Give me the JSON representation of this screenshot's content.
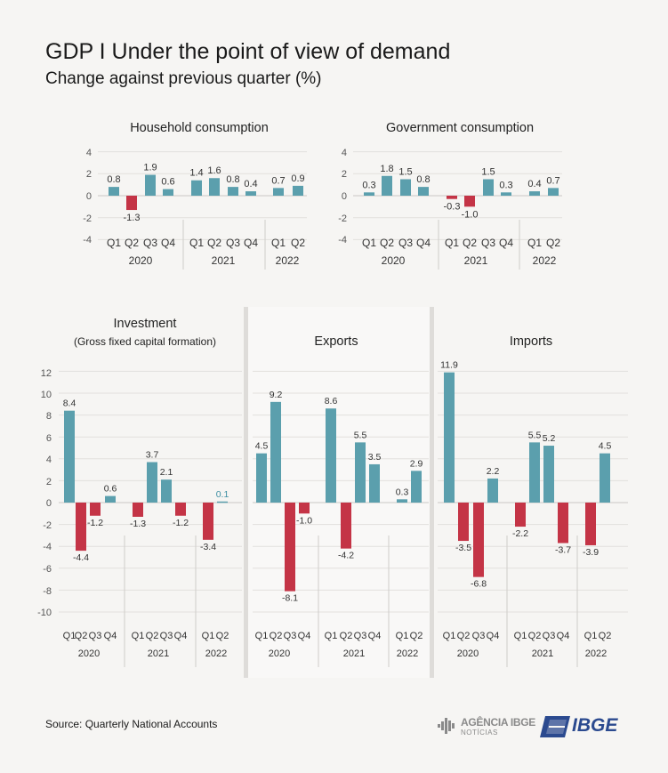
{
  "header": {
    "title": "GDP I Under the point of view of demand",
    "subtitle": "Change against previous quarter (%)"
  },
  "footer": {
    "source": "Source: Quarterly National Accounts",
    "logo_agencia_text": "AGÊNCIA IBGE",
    "logo_agencia_sub": "NOTÍCIAS",
    "logo_ibge_text": "IBGE"
  },
  "colors": {
    "positive": "#5b9fad",
    "negative": "#c43446",
    "highlight_label": "#3d8fa3"
  },
  "chart_data": [
    {
      "type": "bar",
      "title": "Household consumption",
      "subtitle": "",
      "categories": [
        "Q1",
        "Q2",
        "Q3",
        "Q4",
        "Q1",
        "Q2",
        "Q3",
        "Q4",
        "Q1",
        "Q2"
      ],
      "groups": [
        {
          "label": "2020",
          "count": 4
        },
        {
          "label": "2021",
          "count": 4
        },
        {
          "label": "2022",
          "count": 2
        }
      ],
      "values": [
        0.8,
        -1.3,
        1.9,
        0.6,
        1.4,
        1.6,
        0.8,
        0.4,
        0.7,
        0.9
      ],
      "value_labels": [
        "0.8",
        "-1.3",
        "1.9",
        "0.6",
        "1.4",
        "1.6",
        "0.8",
        "0.4",
        "0.7",
        "0.9"
      ],
      "yticks": [
        "4",
        "2",
        "0",
        "-2",
        "-4"
      ],
      "ylim": [
        -4,
        4
      ]
    },
    {
      "type": "bar",
      "title": "Government consumption",
      "subtitle": "",
      "categories": [
        "Q1",
        "Q2",
        "Q3",
        "Q4",
        "Q1",
        "Q2",
        "Q3",
        "Q4",
        "Q1",
        "Q2"
      ],
      "groups": [
        {
          "label": "2020",
          "count": 4
        },
        {
          "label": "2021",
          "count": 4
        },
        {
          "label": "2022",
          "count": 2
        }
      ],
      "values": [
        0.3,
        1.8,
        1.5,
        0.8,
        -0.3,
        -1.0,
        1.5,
        0.3,
        0.4,
        0.7
      ],
      "value_labels": [
        "0.3",
        "1.8",
        "1.5",
        "0.8",
        "-0.3",
        "-1.0",
        "1.5",
        "0.3",
        "0.4",
        "0.7"
      ],
      "yticks": [
        "4",
        "2",
        "0",
        "-2",
        "-4"
      ],
      "ylim": [
        -4,
        4
      ]
    },
    {
      "type": "bar",
      "title": "Investment",
      "subtitle": "(Gross fixed capital formation)",
      "categories": [
        "Q1",
        "Q2",
        "Q3",
        "Q4",
        "Q1",
        "Q2",
        "Q3",
        "Q4",
        "Q1",
        "Q2"
      ],
      "groups": [
        {
          "label": "2020",
          "count": 4
        },
        {
          "label": "2021",
          "count": 4
        },
        {
          "label": "2022",
          "count": 2
        }
      ],
      "values": [
        8.4,
        -4.4,
        -1.2,
        0.6,
        -1.3,
        3.7,
        2.1,
        -1.2,
        -3.4,
        0.1
      ],
      "value_labels": [
        "8.4",
        "-4.4",
        "-1.2",
        "0.6",
        "-1.3",
        "3.7",
        "2.1",
        "-1.2",
        "-3.4",
        "0.1"
      ],
      "yticks": [
        "12",
        "10",
        "8",
        "6",
        "4",
        "2",
        "0",
        "-2",
        "-4",
        "-6",
        "-8",
        "-10"
      ],
      "ylim": [
        -10,
        12
      ]
    },
    {
      "type": "bar",
      "title": "Exports",
      "subtitle": "",
      "categories": [
        "Q1",
        "Q2",
        "Q3",
        "Q4",
        "Q1",
        "Q2",
        "Q3",
        "Q4",
        "Q1",
        "Q2"
      ],
      "groups": [
        {
          "label": "2020",
          "count": 4
        },
        {
          "label": "2021",
          "count": 4
        },
        {
          "label": "2022",
          "count": 2
        }
      ],
      "values": [
        4.5,
        9.2,
        -8.1,
        -1.0,
        8.6,
        -4.2,
        5.5,
        3.5,
        0.3,
        2.9
      ],
      "value_labels": [
        "4.5",
        "9.2",
        "-8.1",
        "-1.0",
        "8.6",
        "-4.2",
        "5.5",
        "3.5",
        "0.3",
        "2.9"
      ],
      "yticks": [],
      "ylim": [
        -10,
        12
      ]
    },
    {
      "type": "bar",
      "title": "Imports",
      "subtitle": "",
      "categories": [
        "Q1",
        "Q2",
        "Q3",
        "Q4",
        "Q1",
        "Q2",
        "Q3",
        "Q4",
        "Q1",
        "Q2"
      ],
      "groups": [
        {
          "label": "2020",
          "count": 4
        },
        {
          "label": "2021",
          "count": 4
        },
        {
          "label": "2022",
          "count": 2
        }
      ],
      "values": [
        11.9,
        -3.5,
        -6.8,
        2.2,
        -2.2,
        5.5,
        5.2,
        -3.7,
        -3.9,
        4.5
      ],
      "value_labels": [
        "11.9",
        "-3.5",
        "-6.8",
        "2.2",
        "-2.2",
        "5.5",
        "5.2",
        "-3.7",
        "-3.9",
        "4.5"
      ],
      "yticks": [],
      "ylim": [
        -10,
        12
      ]
    }
  ]
}
